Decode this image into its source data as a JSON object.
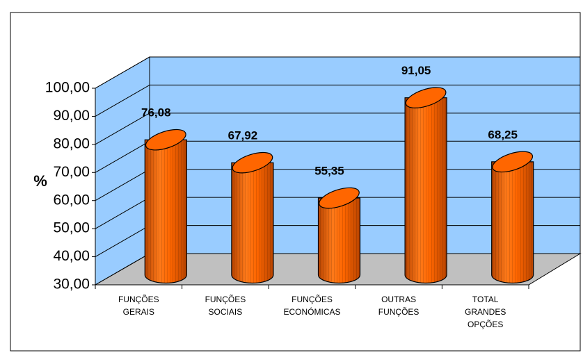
{
  "chart_data": {
    "type": "bar3d-cylinder",
    "y_label": "%",
    "categories": [
      "FUNÇÕES GERAIS",
      "FUNÇÕES SOCIAIS",
      "FUNÇÕES ECONÓMICAS",
      "OUTRAS FUNÇÕES",
      "TOTAL GRANDES OPÇÕES"
    ],
    "values": [
      76.08,
      67.92,
      55.35,
      91.05,
      68.25
    ],
    "value_labels": [
      "76,08",
      "67,92",
      "55,35",
      "91,05",
      "68,25"
    ],
    "color": "#ff6600",
    "ylim": [
      30,
      100
    ],
    "yticks": [
      {
        "value": 30,
        "label": "30,00"
      },
      {
        "value": 40,
        "label": "40,00"
      },
      {
        "value": 50,
        "label": "50,00"
      },
      {
        "value": 60,
        "label": "60,00"
      },
      {
        "value": 70,
        "label": "70,00"
      },
      {
        "value": 80,
        "label": "80,00"
      },
      {
        "value": 90,
        "label": "90,00"
      },
      {
        "value": 100,
        "label": "100,00"
      }
    ],
    "grid": true
  }
}
